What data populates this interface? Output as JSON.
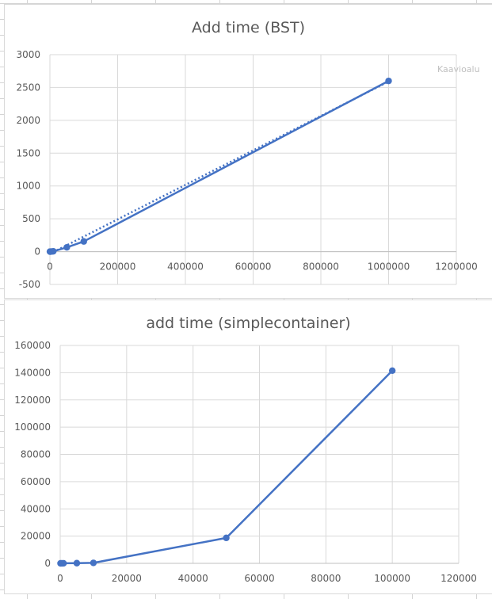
{
  "chart_data": [
    {
      "type": "line",
      "title": "Add time (BST)",
      "xlabel": "",
      "ylabel": "",
      "xlim": [
        0,
        1200000
      ],
      "ylim": [
        -500,
        3000
      ],
      "xticks": [
        "0",
        "200000",
        "400000",
        "600000",
        "800000",
        "1000000",
        "1200000"
      ],
      "yticks": [
        "3000",
        "2500",
        "2000",
        "1500",
        "1000",
        "500",
        "0",
        "-500"
      ],
      "grid": true,
      "legend": "none",
      "trendline": {
        "style": "dotted",
        "type": "linear"
      },
      "series": [
        {
          "x": [
            100,
            1000,
            5000,
            10000,
            50000,
            100000,
            1000000
          ],
          "y": [
            0,
            0,
            2,
            5,
            65,
            155,
            2600
          ]
        }
      ]
    },
    {
      "type": "line",
      "title": "add time (simplecontainer)",
      "xlabel": "",
      "ylabel": "",
      "xlim": [
        0,
        120000
      ],
      "ylim": [
        0,
        160000
      ],
      "xticks": [
        "0",
        "20000",
        "40000",
        "60000",
        "80000",
        "100000",
        "120000"
      ],
      "yticks": [
        "160000",
        "140000",
        "120000",
        "100000",
        "80000",
        "60000",
        "40000",
        "20000",
        "0"
      ],
      "grid": true,
      "legend": "none",
      "series": [
        {
          "x": [
            100,
            500,
            1000,
            5000,
            10000,
            50000,
            100000
          ],
          "y": [
            0,
            5,
            40,
            150,
            350,
            18700,
            141500
          ]
        }
      ]
    }
  ],
  "tooltip": {
    "text": "Kaavioalu"
  },
  "colors": {
    "series": "#4472c4",
    "grid": "#d9d9d9",
    "text": "#595959"
  }
}
